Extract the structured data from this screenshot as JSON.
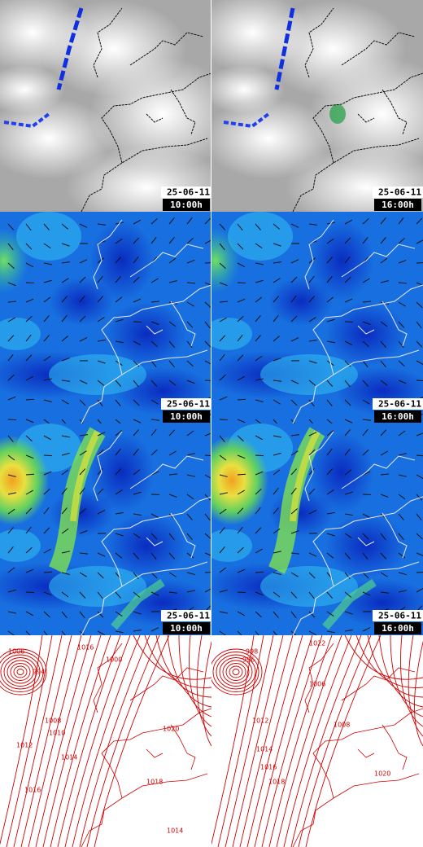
{
  "rows": [
    [
      {
        "date": "25-06-11",
        "time": "10:00h"
      },
      {
        "date": "25-06-11",
        "time": "16:00h"
      }
    ],
    [
      {
        "date": "25-06-11",
        "time": "10:00h"
      },
      {
        "date": "25-06-11",
        "time": "16:00h"
      }
    ],
    [
      {
        "date": "25-06-11",
        "time": "10:00h"
      },
      {
        "date": "25-06-11",
        "time": "16:00h"
      }
    ]
  ],
  "isobars": [
    [
      "1006",
      "1016",
      "994",
      "1008",
      "1010",
      "1012",
      "1014",
      "1016",
      "1020",
      "1018",
      "1014",
      "1000"
    ],
    [
      "998",
      "996",
      "1006",
      "1012",
      "1014",
      "1016",
      "1018",
      "1008",
      "1020",
      "1022"
    ]
  ]
}
